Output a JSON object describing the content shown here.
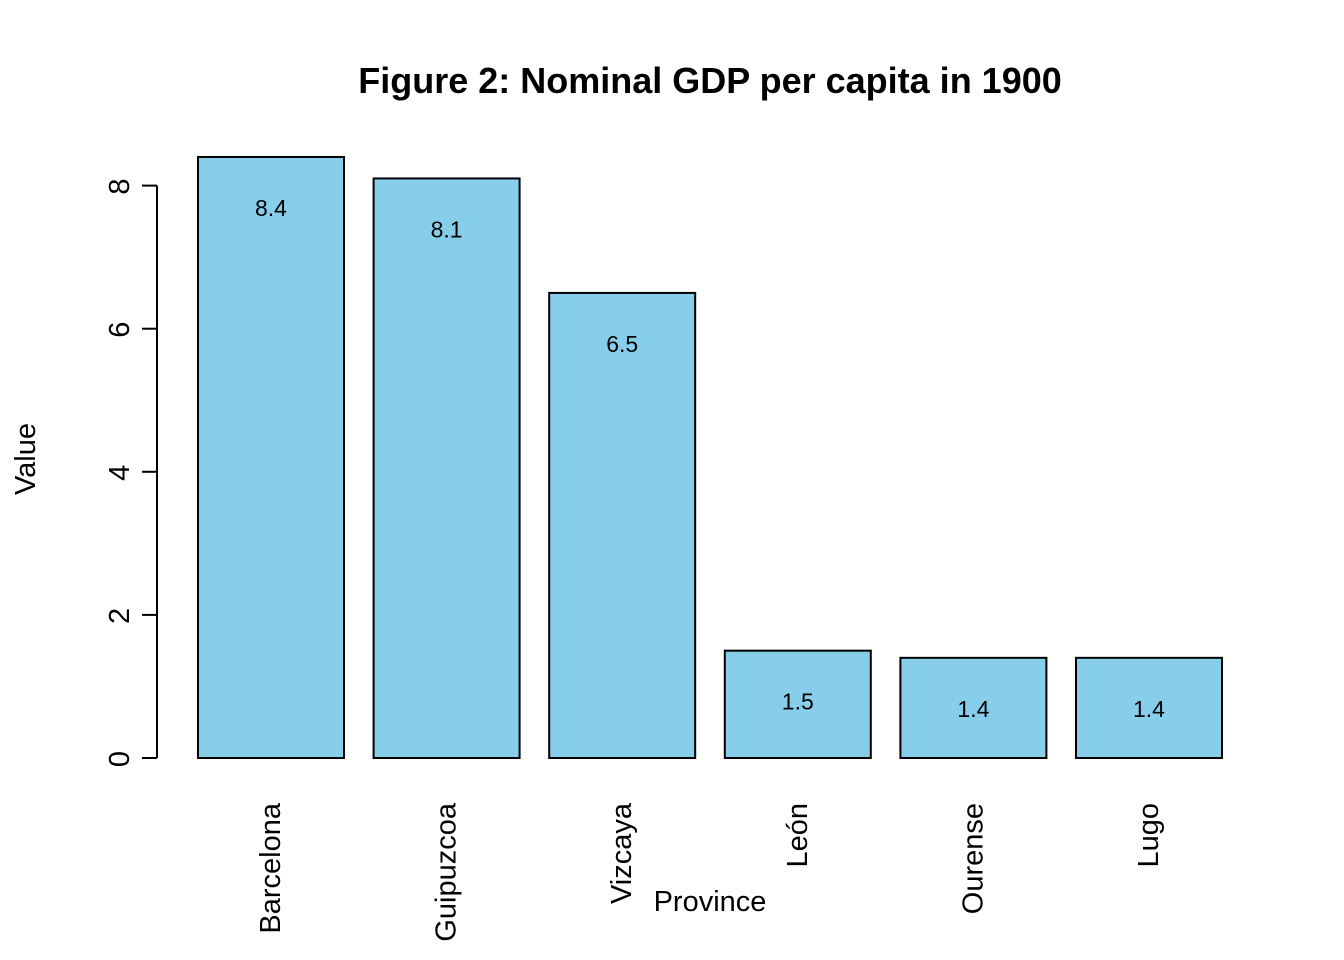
{
  "chart_data": {
    "type": "bar",
    "title": "Figure 2: Nominal GDP per capita in 1900",
    "xlabel": "Province",
    "ylabel": "Value",
    "categories": [
      "Barcelona",
      "Guipuzcoa",
      "Vizcaya",
      "León",
      "Ourense",
      "Lugo"
    ],
    "values": [
      8.4,
      8.1,
      6.5,
      1.5,
      1.4,
      1.4
    ],
    "data_labels": [
      "8.4",
      "8.1",
      "6.5",
      "1.5",
      "1.4",
      "1.4"
    ],
    "y_ticks": [
      0,
      2,
      4,
      6,
      8
    ],
    "y_tick_labels": [
      "0",
      "2",
      "4",
      "6",
      "8"
    ],
    "ylim": [
      0,
      8.4
    ],
    "grid": false,
    "legend": "none",
    "bar_color": "#87CEEB",
    "bar_border_color": "#000000"
  }
}
